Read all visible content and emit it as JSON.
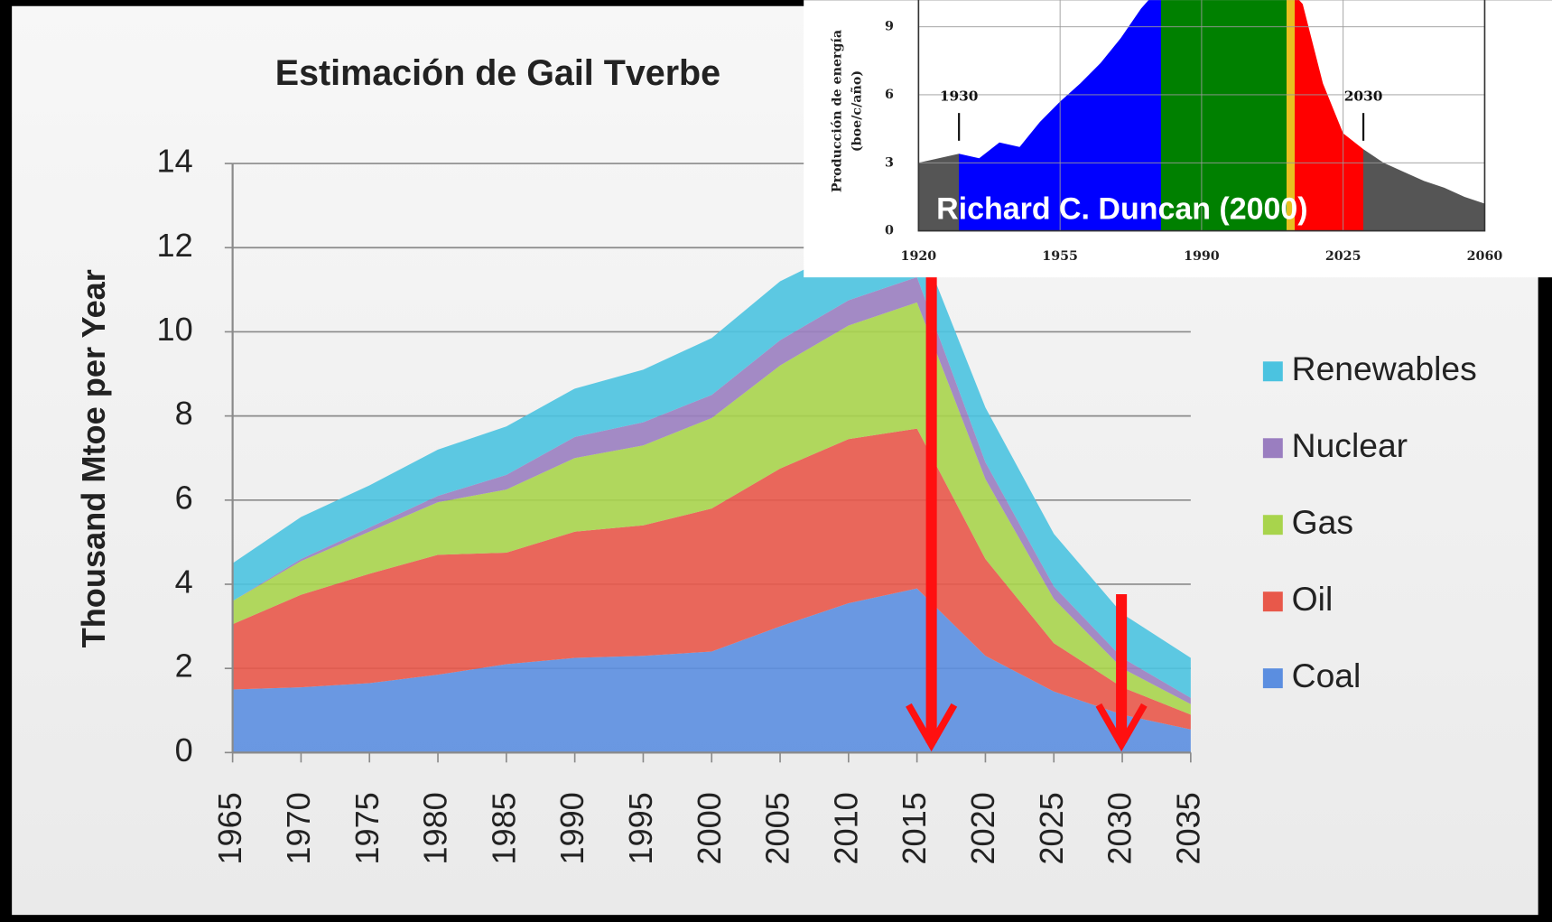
{
  "chart_data": [
    {
      "type": "stacked_area",
      "title": "Estimación de Gail Tverbe",
      "ylabel": "Thousand Mtoe per Year",
      "x": [
        1965,
        1970,
        1975,
        1980,
        1985,
        1990,
        1995,
        2000,
        2005,
        2010,
        2015,
        2020,
        2025,
        2030,
        2035
      ],
      "xlim": [
        1965,
        2035
      ],
      "xticks": [
        1965,
        1970,
        1975,
        1980,
        1985,
        1990,
        1995,
        2000,
        2005,
        2010,
        2015,
        2020,
        2025,
        2030,
        2035
      ],
      "ylim": [
        0,
        14
      ],
      "yticks": [
        0,
        2,
        4,
        6,
        8,
        10,
        12,
        14
      ],
      "grid": true,
      "legend": "right",
      "series": [
        {
          "name": "Coal",
          "color": "#5b8ee0",
          "values": [
            1.5,
            1.55,
            1.65,
            1.85,
            2.1,
            2.25,
            2.3,
            2.4,
            3.0,
            3.55,
            3.9,
            2.3,
            1.45,
            0.9,
            0.55
          ]
        },
        {
          "name": "Oil",
          "color": "#e8584a",
          "values": [
            1.55,
            2.2,
            2.6,
            2.85,
            2.65,
            3.0,
            3.1,
            3.4,
            3.75,
            3.9,
            3.8,
            2.3,
            1.15,
            0.65,
            0.35
          ]
        },
        {
          "name": "Gas",
          "color": "#a8d44c",
          "values": [
            0.55,
            0.8,
            1.0,
            1.25,
            1.5,
            1.75,
            1.9,
            2.15,
            2.45,
            2.7,
            3.0,
            1.9,
            1.05,
            0.45,
            0.25
          ]
        },
        {
          "name": "Nuclear",
          "color": "#9a7ec0",
          "values": [
            0,
            0.05,
            0.1,
            0.15,
            0.35,
            0.5,
            0.55,
            0.55,
            0.6,
            0.6,
            0.6,
            0.4,
            0.3,
            0.25,
            0.15
          ]
        },
        {
          "name": "Renewables",
          "color": "#4bc3e0",
          "values": [
            0.9,
            1.0,
            1.0,
            1.1,
            1.15,
            1.15,
            1.25,
            1.35,
            1.4,
            1.25,
            1.0,
            1.3,
            1.25,
            1.05,
            0.95
          ]
        }
      ]
    },
    {
      "type": "area",
      "ylabel": [
        "Producción de energía",
        "(boe/c/año)"
      ],
      "annotation": "Richard C. Duncan (2000)",
      "markers": [
        {
          "x": 1930,
          "label": "1930"
        },
        {
          "x": 2030,
          "label": "2030"
        }
      ],
      "x": [
        1920,
        1925,
        1930,
        1935,
        1940,
        1945,
        1950,
        1955,
        1960,
        1965,
        1970,
        1975,
        1980,
        1985,
        1990,
        1995,
        2000,
        2005,
        2010,
        2015,
        2020,
        2025,
        2030,
        2035,
        2040,
        2045,
        2050,
        2055,
        2060
      ],
      "values": [
        3.0,
        3.2,
        3.4,
        3.2,
        3.9,
        3.7,
        4.8,
        5.7,
        6.5,
        7.4,
        8.5,
        9.8,
        10.8,
        11,
        11,
        11,
        11,
        11,
        11,
        10,
        6.5,
        4.3,
        3.6,
        3.0,
        2.6,
        2.2,
        1.9,
        1.5,
        1.2
      ],
      "regions": [
        {
          "from": 1920,
          "to": 1930,
          "color": "#555555"
        },
        {
          "from": 1930,
          "to": 1980,
          "color": "#0000ff"
        },
        {
          "from": 1980,
          "to": 2011,
          "color": "#008000"
        },
        {
          "from": 2011,
          "to": 2013,
          "color": "#e8c020"
        },
        {
          "from": 2013,
          "to": 2030,
          "color": "#ff0000"
        },
        {
          "from": 2030,
          "to": 2060,
          "color": "#555555"
        }
      ],
      "xlim": [
        1920,
        2060
      ],
      "xticks": [
        1920,
        1955,
        1990,
        2025,
        2060
      ],
      "ylim": [
        0,
        10
      ],
      "yticks": [
        0,
        3,
        6,
        9
      ],
      "grid": true
    }
  ]
}
